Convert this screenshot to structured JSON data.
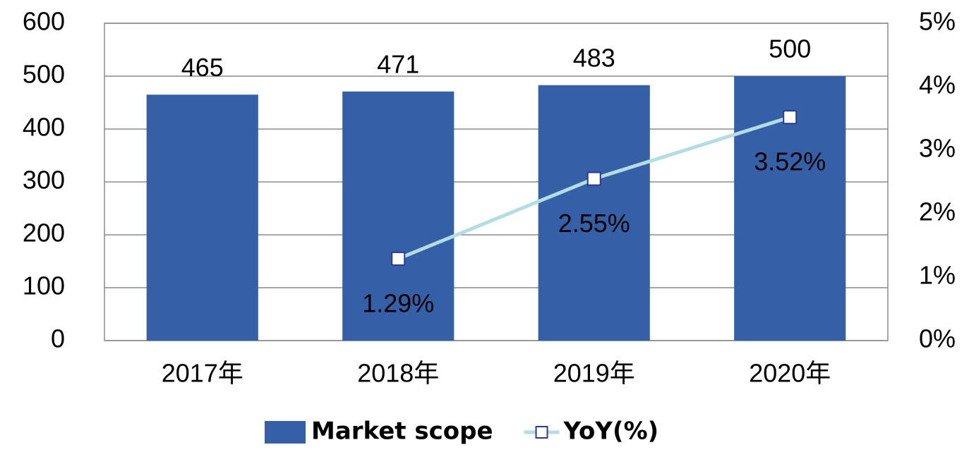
{
  "chart_data": {
    "type": "bar",
    "categories": [
      "2017年",
      "2018年",
      "2019年",
      "2020年"
    ],
    "series": [
      {
        "name": "Market scope",
        "type": "bar",
        "color": "#3560a8",
        "values": [
          465,
          471,
          483,
          500
        ]
      },
      {
        "name": "YoY(%)",
        "type": "line",
        "axis": "y2",
        "color": "#b3dde3",
        "marker_color": "#2e3a8c",
        "values": [
          null,
          1.29,
          2.55,
          3.52
        ],
        "value_labels": [
          null,
          "1.29%",
          "2.55%",
          "3.52%"
        ]
      }
    ],
    "ylim": [
      0,
      600
    ],
    "yticks": [
      0,
      100,
      200,
      300,
      400,
      500,
      600
    ],
    "y2lim": [
      0,
      5
    ],
    "y2ticks": [
      {
        "value": 0,
        "label": "0%"
      },
      {
        "value": 1,
        "label": "1%"
      },
      {
        "value": 2,
        "label": "2%"
      },
      {
        "value": 3,
        "label": "3%"
      },
      {
        "value": 4,
        "label": "4%"
      },
      {
        "value": 5,
        "label": "5%"
      }
    ],
    "grid": true,
    "legend": "bottom"
  }
}
